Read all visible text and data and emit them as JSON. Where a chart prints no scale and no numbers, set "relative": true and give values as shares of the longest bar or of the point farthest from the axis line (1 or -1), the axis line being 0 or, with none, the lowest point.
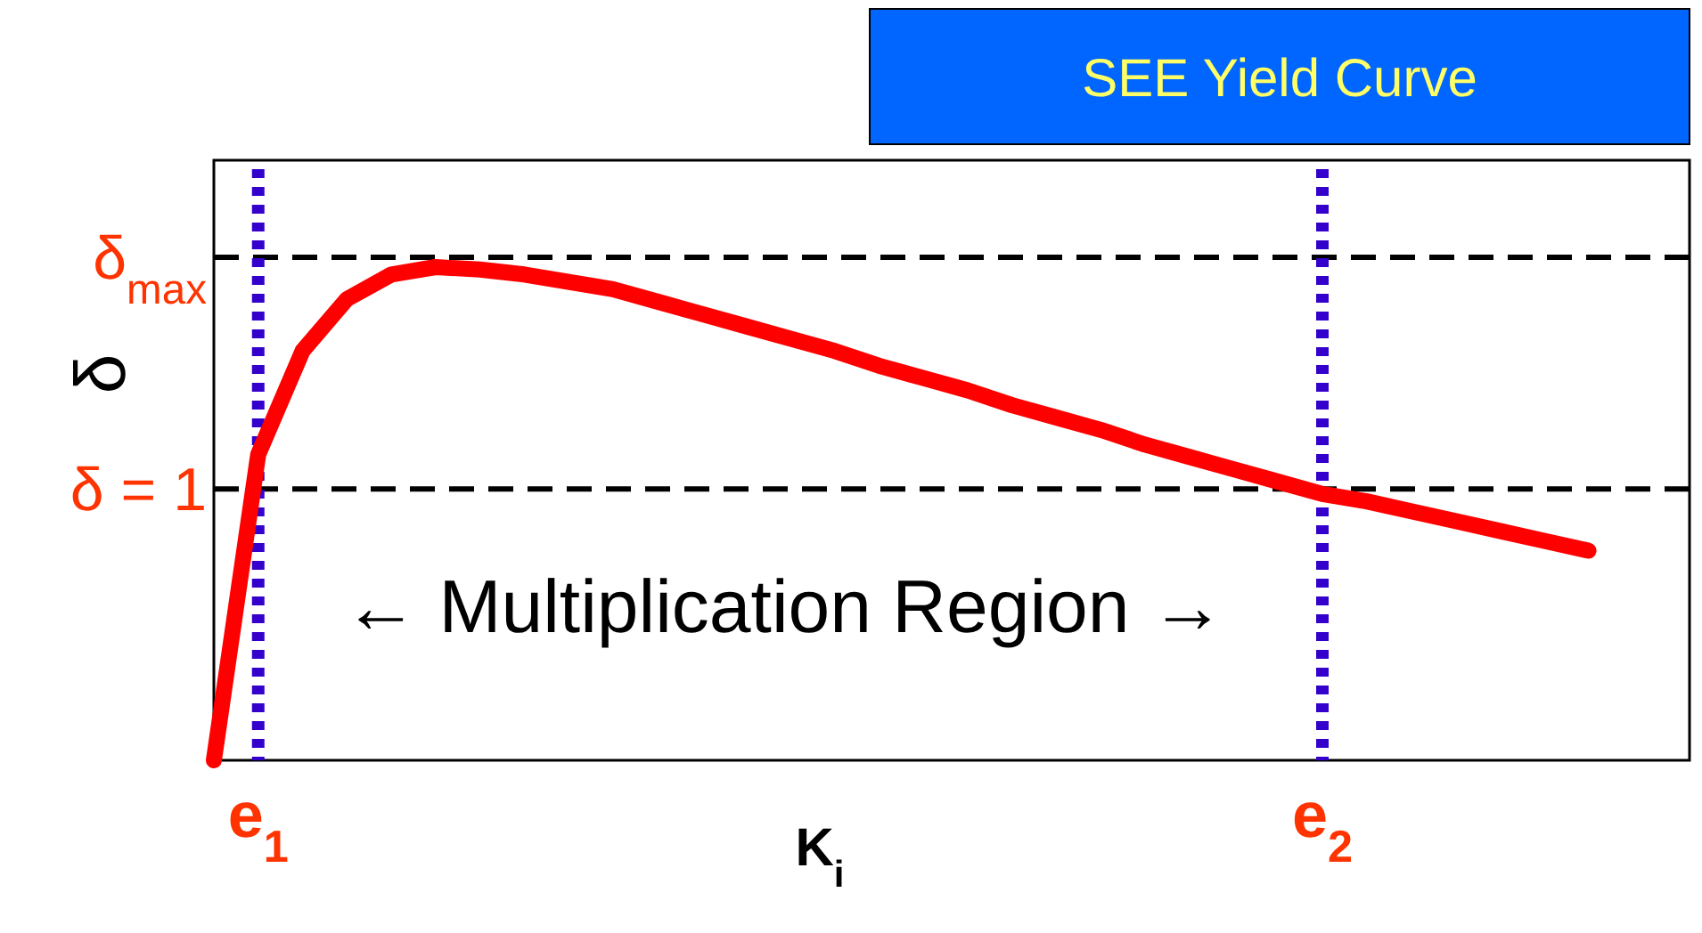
{
  "chart_data": {
    "type": "line",
    "title": "SEE Yield Curve",
    "xlabel": "K$_{i}$",
    "ylabel": "δ",
    "relative": true,
    "tick_labels": "x",
    "categories": [
      null,
      "e$_{1}$",
      null,
      null,
      null,
      null,
      null,
      null,
      null,
      null,
      null,
      null,
      null,
      null,
      null,
      null,
      null,
      null,
      null,
      null,
      null,
      null,
      null,
      null,
      null,
      "e$_{2}$",
      null,
      null,
      null,
      null,
      null,
      null
    ],
    "series": [
      {
        "color": "#ff0000",
        "values": [
          0,
          0.62,
          0.83,
          0.935,
          0.985,
          1,
          0.995,
          0.985,
          0.97,
          0.955,
          0.93,
          0.905,
          0.88,
          0.855,
          0.83,
          0.8,
          0.775,
          0.75,
          0.72,
          0.695,
          0.67,
          0.64,
          0.615,
          0.59,
          0.565,
          0.54,
          0.525,
          0.505,
          0.485,
          0.465,
          0.445,
          0.425
        ]
      }
    ],
    "ref_lines": [
      {
        "axis": "y",
        "value": 1.02,
        "label": "δ$_{max}$",
        "color": "#000000",
        "line_style": "dashed"
      },
      {
        "axis": "y",
        "value": 0.55,
        "label": "δ = 1",
        "color": "#000000",
        "line_style": "dashed"
      },
      {
        "axis": "x",
        "value": "e$_{1}$",
        "color": "#3300cc",
        "line_style": "dotted"
      },
      {
        "axis": "x",
        "value": "e$_{2}$",
        "color": "#3300cc",
        "line_style": "dotted"
      }
    ],
    "annotations": [
      "← Multiplication Region →"
    ]
  }
}
